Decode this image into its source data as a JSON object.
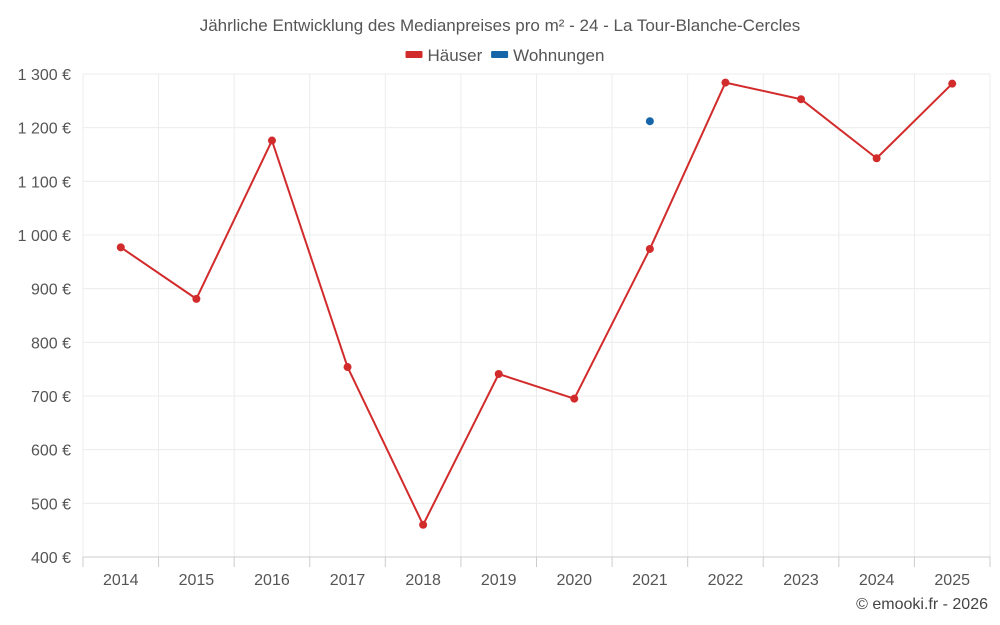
{
  "chart_data": {
    "type": "line",
    "title": "Jährliche Entwicklung des Medianpreises pro m² - 24 - La Tour-Blanche-Cercles",
    "xlabel": "",
    "ylabel": "",
    "categories": [
      "2014",
      "2015",
      "2016",
      "2017",
      "2018",
      "2019",
      "2020",
      "2021",
      "2022",
      "2023",
      "2024",
      "2025"
    ],
    "ylim": [
      400,
      1300
    ],
    "yticks": [
      400,
      500,
      600,
      700,
      800,
      900,
      1000,
      1100,
      1200,
      1300
    ],
    "ytick_labels": [
      "400 €",
      "500 €",
      "600 €",
      "700 €",
      "800 €",
      "900 €",
      "1 000 €",
      "1 100 €",
      "1 200 €",
      "1 300 €"
    ],
    "grid": true,
    "legend_position": "top",
    "series": [
      {
        "name": "Häuser",
        "color": "#d22b2b",
        "values": [
          977,
          881,
          1176,
          754,
          460,
          741,
          695,
          974,
          1284,
          1253,
          1143,
          1282
        ]
      },
      {
        "name": "Wohnungen",
        "color": "#1565a8",
        "values": [
          null,
          null,
          null,
          null,
          null,
          null,
          null,
          1212,
          null,
          null,
          null,
          null
        ]
      }
    ]
  },
  "credit": "© emooki.fr - 2026"
}
